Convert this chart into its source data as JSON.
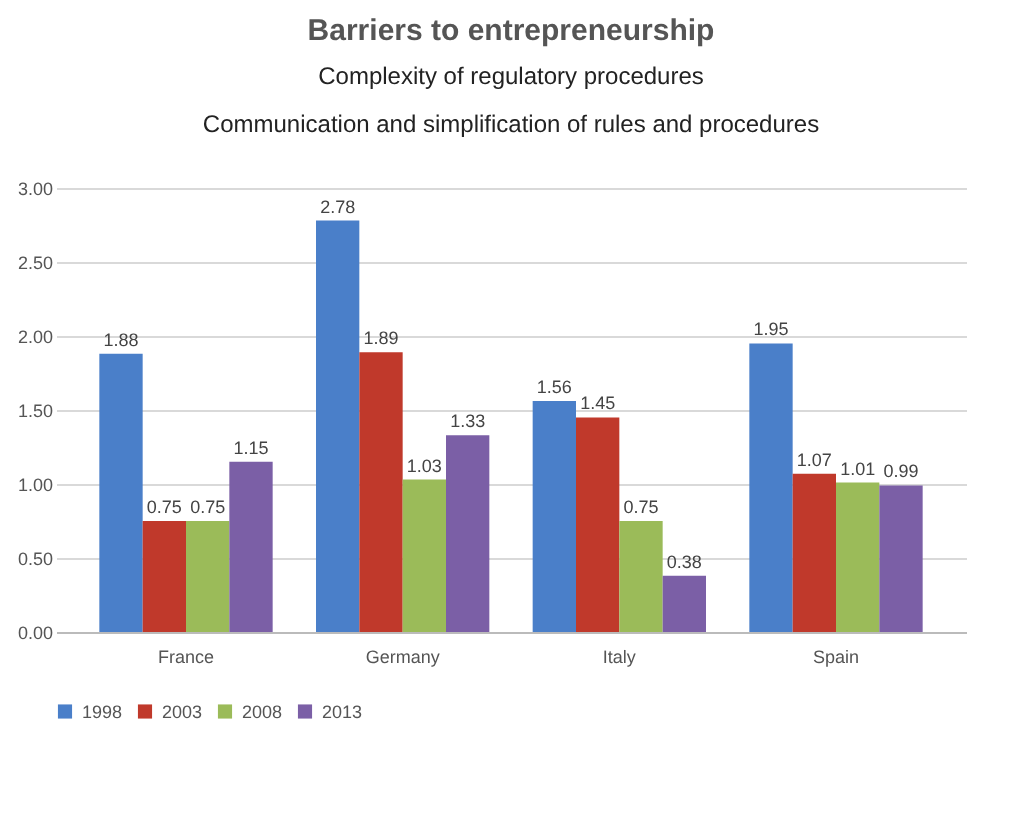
{
  "chart_data": {
    "type": "bar",
    "title": "Barriers to entrepreneurship",
    "subtitle": "Complexity of regulatory procedures",
    "annotations": [
      "Communication and simplification of rules and procedures"
    ],
    "categories": [
      "France",
      "Germany",
      "Italy",
      "Spain"
    ],
    "series": [
      {
        "name": "1998",
        "color": "#4a7fc9",
        "values": [
          1.88,
          2.78,
          1.56,
          1.95
        ]
      },
      {
        "name": "2003",
        "color": "#c0392b",
        "values": [
          0.75,
          1.89,
          1.45,
          1.07
        ]
      },
      {
        "name": "2008",
        "color": "#9bbb59",
        "values": [
          0.75,
          1.03,
          0.75,
          1.01
        ]
      },
      {
        "name": "2013",
        "color": "#7b5fa6",
        "values": [
          1.15,
          1.33,
          0.38,
          0.99
        ]
      }
    ],
    "ylim": [
      0,
      3
    ],
    "yticks": [
      {
        "value": 0,
        "label": "0.00"
      },
      {
        "value": 0.5,
        "label": "0.50"
      },
      {
        "value": 1,
        "label": "1.00"
      },
      {
        "value": 1.5,
        "label": "1.50"
      },
      {
        "value": 2,
        "label": "2.00"
      },
      {
        "value": 2.5,
        "label": "2.50"
      },
      {
        "value": 3,
        "label": "3.00"
      }
    ],
    "grid": "y",
    "legend": "bottom",
    "data_labels": true
  }
}
